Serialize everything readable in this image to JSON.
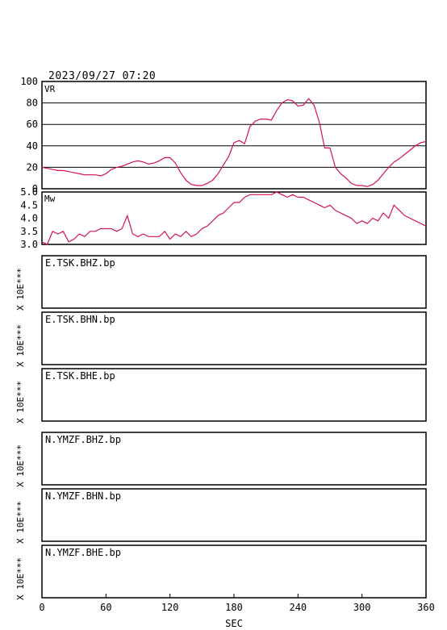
{
  "header": {
    "datetime": "2023/09/27  07:20"
  },
  "colors": {
    "trace": "#d4144c",
    "axis": "#000000",
    "grid": "#000000"
  },
  "chart_data": [
    {
      "type": "line",
      "label": "VR",
      "ylim": [
        0,
        100
      ],
      "yticks": [
        "100",
        "80",
        "60",
        "40",
        "20",
        "0"
      ],
      "grid": true,
      "x": [
        0,
        5,
        10,
        15,
        20,
        25,
        30,
        35,
        40,
        45,
        50,
        55,
        60,
        65,
        70,
        75,
        80,
        85,
        90,
        95,
        100,
        105,
        110,
        115,
        120,
        125,
        130,
        135,
        140,
        145,
        150,
        155,
        160,
        165,
        170,
        175,
        180,
        185,
        190,
        195,
        200,
        205,
        210,
        215,
        220,
        225,
        230,
        235,
        240,
        245,
        250,
        255,
        260,
        265,
        270,
        275,
        280,
        285,
        290,
        295,
        300,
        305,
        310,
        315,
        320,
        325,
        330,
        335,
        340,
        345,
        350,
        355,
        360
      ],
      "series": [
        {
          "values": [
            20,
            19,
            18,
            17,
            17,
            16,
            15,
            14,
            13,
            13,
            13,
            12,
            14,
            18,
            20,
            21,
            23,
            25,
            26,
            25,
            23,
            24,
            26,
            29,
            29,
            24,
            15,
            8,
            4,
            3,
            3,
            5,
            8,
            14,
            22,
            30,
            43,
            45,
            42,
            58,
            63,
            65,
            65,
            64,
            73,
            80,
            83,
            82,
            77,
            78,
            84,
            78,
            62,
            38,
            38,
            20,
            14,
            10,
            5,
            3,
            3,
            2,
            4,
            8,
            14,
            20,
            25,
            28,
            32,
            36,
            40,
            43,
            44
          ]
        }
      ]
    },
    {
      "type": "line",
      "label": "Mw",
      "ylim": [
        3.0,
        5.0
      ],
      "yticks": [
        "5.0",
        "4.5",
        "4.0",
        "3.5",
        "3.0"
      ],
      "grid": false,
      "x": [
        0,
        5,
        10,
        15,
        20,
        25,
        30,
        35,
        40,
        45,
        50,
        55,
        60,
        65,
        70,
        75,
        80,
        85,
        90,
        95,
        100,
        105,
        110,
        115,
        120,
        125,
        130,
        135,
        140,
        145,
        150,
        155,
        160,
        165,
        170,
        175,
        180,
        185,
        190,
        195,
        200,
        205,
        210,
        215,
        220,
        225,
        230,
        235,
        240,
        245,
        250,
        255,
        260,
        265,
        270,
        275,
        280,
        285,
        290,
        295,
        300,
        305,
        310,
        315,
        320,
        325,
        330,
        335,
        340,
        345,
        350,
        355,
        360
      ],
      "series": [
        {
          "values": [
            3.1,
            3.0,
            3.5,
            3.4,
            3.5,
            3.1,
            3.2,
            3.4,
            3.3,
            3.5,
            3.5,
            3.6,
            3.6,
            3.6,
            3.5,
            3.6,
            4.1,
            3.4,
            3.3,
            3.4,
            3.3,
            3.3,
            3.3,
            3.5,
            3.2,
            3.4,
            3.3,
            3.5,
            3.3,
            3.4,
            3.6,
            3.7,
            3.9,
            4.1,
            4.2,
            4.4,
            4.6,
            4.6,
            4.8,
            4.9,
            4.9,
            4.9,
            4.9,
            4.9,
            5.0,
            4.9,
            4.8,
            4.9,
            4.8,
            4.8,
            4.7,
            4.6,
            4.5,
            4.4,
            4.5,
            4.3,
            4.2,
            4.1,
            4.0,
            3.8,
            3.9,
            3.8,
            4.0,
            3.9,
            4.2,
            4.0,
            4.5,
            4.3,
            4.1,
            4.0,
            3.9,
            3.8,
            3.7
          ]
        }
      ]
    }
  ],
  "channels": [
    {
      "label": "E.TSK.BHZ.bp",
      "scale": "X 10E***"
    },
    {
      "label": "E.TSK.BHN.bp",
      "scale": "X 10E***"
    },
    {
      "label": "E.TSK.BHE.bp",
      "scale": "X 10E***"
    },
    {
      "label": "N.YMZF.BHZ.bp",
      "scale": "X 10E***"
    },
    {
      "label": "N.YMZF.BHN.bp",
      "scale": "X 10E***"
    },
    {
      "label": "N.YMZF.BHE.bp",
      "scale": "X 10E***"
    }
  ],
  "xaxis": {
    "ticks": [
      "0",
      "60",
      "120",
      "180",
      "240",
      "300",
      "360"
    ],
    "label": "SEC",
    "xlim": [
      0,
      360
    ]
  }
}
